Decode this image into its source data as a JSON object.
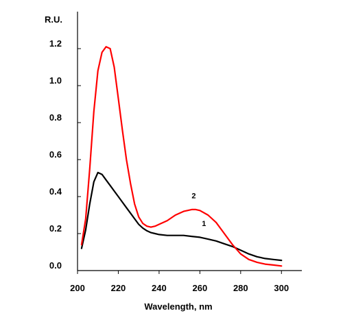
{
  "chart_data": {
    "type": "line",
    "title": "",
    "xlabel": "Wavelength, nm",
    "ylabel": "R.U.",
    "xlim": [
      200,
      310
    ],
    "ylim": [
      0,
      1.4
    ],
    "x_ticks": [
      200,
      220,
      240,
      260,
      280,
      300
    ],
    "x_tick_labels": [
      "200",
      "220",
      "240",
      "260",
      "280",
      "300"
    ],
    "y_ticks": [
      0,
      0.2,
      0.4,
      0.6,
      0.8,
      1.0,
      1.2
    ],
    "y_tick_labels": [
      "0.0",
      "0.2",
      "0.4",
      "0.6",
      "0.8",
      "1.0",
      "1.2"
    ],
    "grid": false,
    "legend": "none",
    "series": [
      {
        "name": "1",
        "color": "#000000",
        "x": [
          202,
          204,
          206,
          208,
          210,
          212,
          214,
          216,
          218,
          220,
          222,
          224,
          226,
          228,
          230,
          232,
          234,
          236,
          238,
          240,
          244,
          248,
          252,
          256,
          260,
          264,
          268,
          272,
          276,
          280,
          284,
          288,
          292,
          296,
          300
        ],
        "y": [
          0.12,
          0.22,
          0.36,
          0.48,
          0.53,
          0.52,
          0.49,
          0.46,
          0.43,
          0.4,
          0.37,
          0.34,
          0.31,
          0.28,
          0.25,
          0.23,
          0.215,
          0.205,
          0.2,
          0.195,
          0.19,
          0.19,
          0.19,
          0.185,
          0.18,
          0.17,
          0.16,
          0.145,
          0.13,
          0.11,
          0.09,
          0.075,
          0.065,
          0.06,
          0.055
        ]
      },
      {
        "name": "2",
        "color": "#ff0000",
        "x": [
          202,
          204,
          206,
          208,
          210,
          212,
          214,
          216,
          218,
          220,
          222,
          224,
          226,
          228,
          230,
          232,
          234,
          236,
          238,
          240,
          244,
          248,
          252,
          256,
          258,
          260,
          264,
          268,
          272,
          276,
          280,
          284,
          288,
          292,
          296,
          300
        ],
        "y": [
          0.14,
          0.28,
          0.55,
          0.86,
          1.08,
          1.18,
          1.21,
          1.2,
          1.1,
          0.93,
          0.76,
          0.6,
          0.47,
          0.36,
          0.29,
          0.255,
          0.24,
          0.235,
          0.24,
          0.25,
          0.27,
          0.3,
          0.32,
          0.33,
          0.33,
          0.325,
          0.3,
          0.26,
          0.2,
          0.14,
          0.09,
          0.06,
          0.045,
          0.035,
          0.03,
          0.025
        ]
      }
    ],
    "annotations": [
      {
        "text": "1",
        "x": 262,
        "y": 0.24
      },
      {
        "text": "2",
        "x": 257,
        "y": 0.39
      }
    ]
  }
}
